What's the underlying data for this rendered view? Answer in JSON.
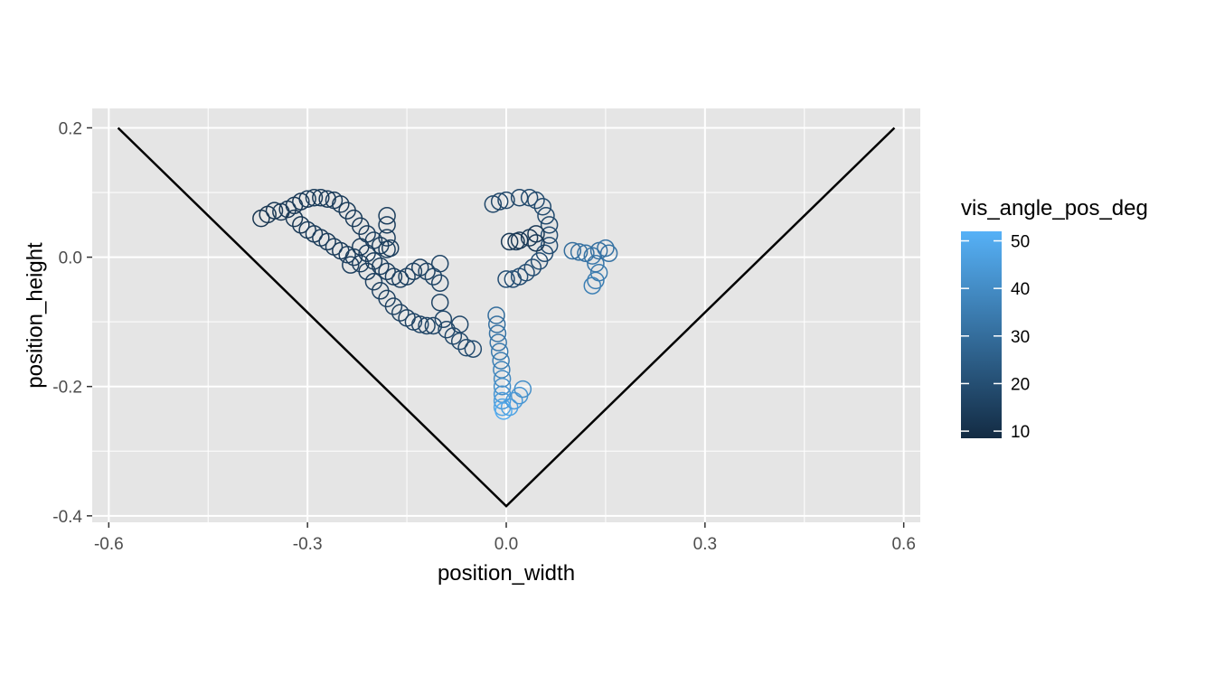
{
  "chart_data": {
    "type": "scatter",
    "xlabel": "position_width",
    "ylabel": "position_height",
    "xlim": [
      -0.625,
      0.625
    ],
    "ylim": [
      -0.41,
      0.23
    ],
    "x_ticks": [
      -0.6,
      -0.3,
      0.0,
      0.3,
      0.6
    ],
    "x_tick_labels": [
      "-0.6",
      "-0.3",
      "0.0",
      "0.3",
      "0.6"
    ],
    "y_ticks": [
      -0.4,
      -0.2,
      0.0,
      0.2
    ],
    "y_tick_labels": [
      "-0.4",
      "-0.2",
      "0.0",
      "0.2"
    ],
    "grid": true,
    "background": "#e5e5e5",
    "boundary_line": {
      "color": "#000000",
      "points": [
        [
          -0.586,
          0.2
        ],
        [
          0.0,
          -0.385
        ],
        [
          0.586,
          0.2
        ]
      ]
    },
    "color_scale": {
      "title": "vis_angle_pos_deg",
      "low_color": "#132b43",
      "high_color": "#56b1f7",
      "min": 8.5,
      "max": 52,
      "breaks": [
        10,
        20,
        30,
        40,
        50
      ],
      "break_labels": [
        "10",
        "20",
        "30",
        "40",
        "50"
      ],
      "legend_position": "right"
    },
    "series": [
      {
        "points": [
          [
            -0.37,
            0.06,
            12
          ],
          [
            -0.36,
            0.066,
            12
          ],
          [
            -0.35,
            0.072,
            13
          ],
          [
            -0.34,
            0.07,
            13
          ],
          [
            -0.33,
            0.074,
            13
          ],
          [
            -0.32,
            0.08,
            13
          ],
          [
            -0.31,
            0.086,
            13
          ],
          [
            -0.3,
            0.09,
            14
          ],
          [
            -0.29,
            0.092,
            14
          ],
          [
            -0.28,
            0.092,
            14
          ],
          [
            -0.27,
            0.09,
            14
          ],
          [
            -0.26,
            0.088,
            14
          ],
          [
            -0.25,
            0.082,
            14
          ],
          [
            -0.24,
            0.072,
            14
          ],
          [
            -0.23,
            0.06,
            14
          ],
          [
            -0.22,
            0.048,
            14
          ],
          [
            -0.21,
            0.036,
            15
          ],
          [
            -0.2,
            0.026,
            15
          ],
          [
            -0.19,
            0.018,
            15
          ],
          [
            -0.18,
            0.012,
            15
          ],
          [
            -0.18,
            0.03,
            15
          ],
          [
            -0.18,
            0.05,
            15
          ],
          [
            -0.18,
            0.064,
            15
          ],
          [
            -0.175,
            0.014,
            15
          ],
          [
            -0.32,
            0.06,
            13
          ],
          [
            -0.31,
            0.05,
            13
          ],
          [
            -0.3,
            0.042,
            14
          ],
          [
            -0.29,
            0.036,
            14
          ],
          [
            -0.28,
            0.03,
            14
          ],
          [
            -0.27,
            0.024,
            14
          ],
          [
            -0.26,
            0.016,
            14
          ],
          [
            -0.25,
            0.01,
            14
          ],
          [
            -0.24,
            0.004,
            15
          ],
          [
            -0.235,
            -0.012,
            15
          ],
          [
            -0.23,
            0.0,
            15
          ],
          [
            -0.22,
            -0.01,
            15
          ],
          [
            -0.21,
            -0.022,
            15
          ],
          [
            -0.2,
            -0.038,
            16
          ],
          [
            -0.19,
            -0.052,
            16
          ],
          [
            -0.18,
            -0.064,
            16
          ],
          [
            -0.17,
            -0.076,
            16
          ],
          [
            -0.16,
            -0.086,
            16
          ],
          [
            -0.15,
            -0.094,
            16
          ],
          [
            -0.14,
            -0.1,
            17
          ],
          [
            -0.13,
            -0.104,
            17
          ],
          [
            -0.12,
            -0.106,
            17
          ],
          [
            -0.11,
            -0.106,
            17
          ],
          [
            -0.22,
            0.016,
            14
          ],
          [
            -0.21,
            0.006,
            15
          ],
          [
            -0.2,
            -0.006,
            15
          ],
          [
            -0.19,
            -0.014,
            15
          ],
          [
            -0.18,
            -0.022,
            15
          ],
          [
            -0.17,
            -0.03,
            15
          ],
          [
            -0.16,
            -0.034,
            16
          ],
          [
            -0.15,
            -0.03,
            16
          ],
          [
            -0.14,
            -0.022,
            16
          ],
          [
            -0.13,
            -0.016,
            16
          ],
          [
            -0.12,
            -0.022,
            16
          ],
          [
            -0.11,
            -0.03,
            17
          ],
          [
            -0.1,
            -0.01,
            17
          ],
          [
            -0.1,
            -0.04,
            17
          ],
          [
            -0.1,
            -0.07,
            17
          ],
          [
            -0.095,
            -0.096,
            18
          ],
          [
            -0.09,
            -0.112,
            18
          ],
          [
            -0.08,
            -0.122,
            18
          ],
          [
            -0.07,
            -0.13,
            18
          ],
          [
            -0.06,
            -0.14,
            19
          ],
          [
            -0.07,
            -0.104,
            18
          ],
          [
            -0.05,
            -0.142,
            19
          ]
        ]
      },
      {
        "points": [
          [
            -0.015,
            -0.09,
            30
          ],
          [
            -0.014,
            -0.104,
            31
          ],
          [
            -0.013,
            -0.118,
            32
          ],
          [
            -0.012,
            -0.132,
            33
          ],
          [
            -0.01,
            -0.146,
            34
          ],
          [
            -0.008,
            -0.16,
            35
          ],
          [
            -0.007,
            -0.174,
            37
          ],
          [
            -0.006,
            -0.188,
            39
          ],
          [
            -0.006,
            -0.2,
            41
          ],
          [
            -0.006,
            -0.212,
            43
          ],
          [
            -0.006,
            -0.222,
            45
          ],
          [
            -0.006,
            -0.232,
            48
          ],
          [
            -0.004,
            -0.238,
            50
          ],
          [
            0.005,
            -0.232,
            47
          ],
          [
            0.012,
            -0.222,
            45
          ],
          [
            0.02,
            -0.214,
            43
          ],
          [
            0.025,
            -0.204,
            41
          ]
        ]
      },
      {
        "points": [
          [
            -0.02,
            0.082,
            18
          ],
          [
            -0.01,
            0.086,
            18
          ],
          [
            0.0,
            0.088,
            18
          ],
          [
            0.02,
            0.092,
            18
          ],
          [
            0.035,
            0.092,
            19
          ],
          [
            0.045,
            0.088,
            19
          ],
          [
            0.055,
            0.078,
            19
          ],
          [
            0.06,
            0.064,
            19
          ],
          [
            0.065,
            0.05,
            19
          ],
          [
            0.065,
            0.034,
            20
          ],
          [
            0.065,
            0.018,
            20
          ],
          [
            0.058,
            0.006,
            20
          ],
          [
            0.05,
            -0.006,
            20
          ],
          [
            0.04,
            -0.016,
            20
          ],
          [
            0.03,
            -0.024,
            20
          ],
          [
            0.02,
            -0.03,
            20
          ],
          [
            0.01,
            -0.034,
            20
          ],
          [
            0.0,
            -0.034,
            20
          ],
          [
            0.005,
            0.024,
            13
          ],
          [
            0.015,
            0.024,
            13
          ],
          [
            0.02,
            0.026,
            13
          ],
          [
            0.035,
            0.03,
            13
          ],
          [
            0.045,
            0.036,
            13
          ],
          [
            0.045,
            0.022,
            13
          ]
        ]
      },
      {
        "points": [
          [
            0.1,
            0.01,
            30
          ],
          [
            0.11,
            0.008,
            31
          ],
          [
            0.12,
            0.006,
            32
          ],
          [
            0.13,
            0.002,
            33
          ],
          [
            0.135,
            -0.01,
            33
          ],
          [
            0.14,
            -0.024,
            34
          ],
          [
            0.135,
            -0.036,
            35
          ],
          [
            0.13,
            -0.044,
            36
          ],
          [
            0.14,
            0.01,
            31
          ],
          [
            0.15,
            0.014,
            32
          ],
          [
            0.155,
            0.006,
            32
          ]
        ]
      }
    ]
  }
}
